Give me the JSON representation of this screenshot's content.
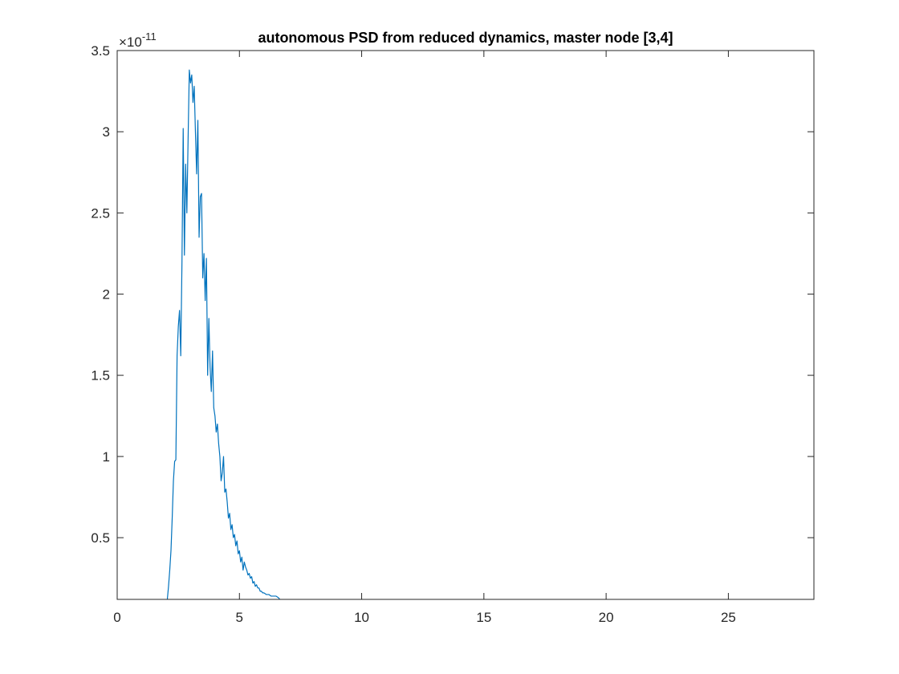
{
  "chart_data": {
    "type": "line",
    "title": "autonomous PSD from reduced dynamics, master node [3,4]",
    "xlabel": "",
    "ylabel": "",
    "xlim": [
      0,
      28.5
    ],
    "ylim": [
      1.2e-12,
      3.5e-11
    ],
    "y_exponent_label": "×10",
    "y_exponent_power": "-11",
    "x_ticks": [
      {
        "value": 0,
        "label": "0"
      },
      {
        "value": 5,
        "label": "5"
      },
      {
        "value": 10,
        "label": "10"
      },
      {
        "value": 15,
        "label": "15"
      },
      {
        "value": 20,
        "label": "20"
      },
      {
        "value": 25,
        "label": "25"
      }
    ],
    "y_ticks": [
      {
        "value": 0.5,
        "label": "0.5"
      },
      {
        "value": 1,
        "label": "1"
      },
      {
        "value": 1.5,
        "label": "1.5"
      },
      {
        "value": 2,
        "label": "2"
      },
      {
        "value": 2.5,
        "label": "2.5"
      },
      {
        "value": 3,
        "label": "3"
      },
      {
        "value": 3.5,
        "label": "3.5"
      }
    ],
    "grid": false,
    "line_color": "#0072bd",
    "series": [
      {
        "x": [
          2.05,
          2.1,
          2.15,
          2.2,
          2.25,
          2.3,
          2.35,
          2.4,
          2.45,
          2.5,
          2.55,
          2.6,
          2.65,
          2.7,
          2.75,
          2.8,
          2.85,
          2.9,
          2.95,
          3.0,
          3.05,
          3.1,
          3.15,
          3.2,
          3.25,
          3.3,
          3.35,
          3.4,
          3.45,
          3.5,
          3.55,
          3.6,
          3.65,
          3.7,
          3.75,
          3.8,
          3.85,
          3.9,
          3.95,
          4.0,
          4.05,
          4.1,
          4.15,
          4.2,
          4.25,
          4.3,
          4.35,
          4.4,
          4.45,
          4.5,
          4.55,
          4.6,
          4.65,
          4.7,
          4.75,
          4.8,
          4.85,
          4.9,
          4.95,
          5.0,
          5.05,
          5.1,
          5.15,
          5.2,
          5.25,
          5.3,
          5.35,
          5.4,
          5.45,
          5.5,
          5.55,
          5.6,
          5.65,
          5.7,
          5.75,
          5.8,
          5.85,
          5.9,
          5.95,
          6.0,
          6.1,
          6.2,
          6.3,
          6.4,
          6.5,
          6.6,
          6.65
        ],
        "y": [
          0.12,
          0.2,
          0.3,
          0.42,
          0.62,
          0.85,
          0.97,
          0.98,
          1.62,
          1.8,
          1.9,
          1.62,
          2.2,
          3.02,
          2.24,
          2.8,
          2.5,
          2.95,
          3.38,
          3.3,
          3.35,
          3.18,
          3.28,
          3.0,
          2.74,
          3.07,
          2.35,
          2.6,
          2.62,
          2.1,
          2.25,
          1.96,
          2.22,
          1.5,
          1.85,
          1.55,
          1.4,
          1.65,
          1.3,
          1.25,
          1.15,
          1.2,
          1.08,
          1.0,
          0.85,
          0.9,
          1.0,
          0.78,
          0.8,
          0.72,
          0.62,
          0.65,
          0.55,
          0.58,
          0.5,
          0.52,
          0.45,
          0.48,
          0.4,
          0.42,
          0.35,
          0.38,
          0.3,
          0.35,
          0.32,
          0.3,
          0.27,
          0.28,
          0.25,
          0.26,
          0.22,
          0.23,
          0.2,
          0.21,
          0.19,
          0.19,
          0.17,
          0.17,
          0.16,
          0.16,
          0.15,
          0.15,
          0.14,
          0.14,
          0.14,
          0.13,
          0.12
        ]
      }
    ]
  }
}
